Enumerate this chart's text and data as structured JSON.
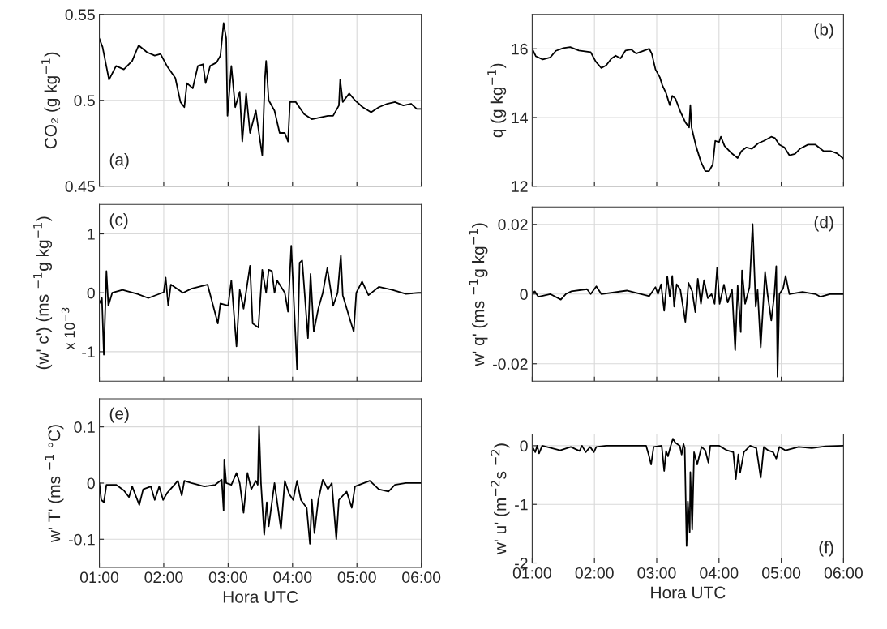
{
  "chart_data": [
    {
      "type": "line",
      "ylabel": "CO₂ (g kg$^{−1}$)",
      "annotations": [
        "(a)"
      ],
      "grid": true,
      "tick_labels": "y",
      "xlim": [
        1,
        6
      ],
      "xticks": [
        {
          "value": 1,
          "label": null
        },
        {
          "value": 2,
          "label": null
        },
        {
          "value": 3,
          "label": null
        },
        {
          "value": 4,
          "label": null
        },
        {
          "value": 5,
          "label": null
        },
        {
          "value": 6,
          "label": null
        }
      ],
      "ylim": [
        0.45,
        0.55
      ],
      "yticks": [
        0.45,
        0.5,
        0.55
      ],
      "series": [
        {
          "color": "#000000",
          "x": [
            1.0,
            1.05,
            1.15,
            1.26,
            1.38,
            1.51,
            1.61,
            1.74,
            1.86,
            1.95,
            2.05,
            2.18,
            2.26,
            2.32,
            2.36,
            2.45,
            2.53,
            2.61,
            2.65,
            2.72,
            2.82,
            2.88,
            2.93,
            2.97,
            2.99,
            3.05,
            3.11,
            3.18,
            3.22,
            3.28,
            3.34,
            3.43,
            3.49,
            3.53,
            3.57,
            3.59,
            3.63,
            3.72,
            3.8,
            3.88,
            3.93,
            3.96,
            4.05,
            4.18,
            4.3,
            4.43,
            4.55,
            4.63,
            4.72,
            4.74,
            4.78,
            4.88,
            4.97,
            5.09,
            5.22,
            5.34,
            5.47,
            5.59,
            5.72,
            5.84,
            5.93,
            6.0
          ],
          "values": [
            0.536,
            0.531,
            0.512,
            0.52,
            0.518,
            0.523,
            0.532,
            0.528,
            0.526,
            0.527,
            0.52,
            0.513,
            0.499,
            0.496,
            0.51,
            0.507,
            0.52,
            0.521,
            0.51,
            0.52,
            0.522,
            0.526,
            0.545,
            0.536,
            0.491,
            0.52,
            0.496,
            0.505,
            0.476,
            0.504,
            0.481,
            0.494,
            0.478,
            0.468,
            0.512,
            0.523,
            0.5,
            0.494,
            0.481,
            0.481,
            0.476,
            0.499,
            0.499,
            0.492,
            0.489,
            0.49,
            0.491,
            0.491,
            0.497,
            0.512,
            0.499,
            0.504,
            0.5,
            0.496,
            0.493,
            0.496,
            0.498,
            0.499,
            0.497,
            0.498,
            0.495,
            0.495
          ]
        }
      ]
    },
    {
      "type": "line",
      "ylabel": "q (g kg$^{−1}$)",
      "annotations": [
        "(b)"
      ],
      "grid": true,
      "tick_labels": "y",
      "xlim": [
        1,
        6
      ],
      "xticks": [
        {
          "value": 1,
          "label": null
        },
        {
          "value": 2,
          "label": null
        },
        {
          "value": 3,
          "label": null
        },
        {
          "value": 4,
          "label": null
        },
        {
          "value": 5,
          "label": null
        },
        {
          "value": 6,
          "label": null
        }
      ],
      "ylim": [
        12,
        17
      ],
      "yticks": [
        12,
        14,
        16
      ],
      "series": [
        {
          "color": "#000000",
          "x": [
            1.0,
            1.06,
            1.17,
            1.29,
            1.38,
            1.5,
            1.61,
            1.75,
            1.94,
            2.02,
            2.11,
            2.19,
            2.27,
            2.34,
            2.42,
            2.5,
            2.59,
            2.67,
            2.8,
            2.88,
            2.92,
            2.98,
            3.05,
            3.09,
            3.15,
            3.21,
            3.25,
            3.3,
            3.38,
            3.46,
            3.52,
            3.54,
            3.56,
            3.63,
            3.71,
            3.78,
            3.84,
            3.9,
            3.94,
            4.0,
            4.03,
            4.09,
            4.19,
            4.3,
            4.36,
            4.44,
            4.53,
            4.63,
            4.72,
            4.84,
            4.9,
            4.97,
            5.05,
            5.13,
            5.22,
            5.3,
            5.43,
            5.55,
            5.68,
            5.8,
            5.9,
            6.0
          ],
          "values": [
            16.0,
            15.78,
            15.69,
            15.75,
            15.94,
            16.02,
            16.05,
            15.95,
            15.9,
            15.63,
            15.44,
            15.52,
            15.71,
            15.8,
            15.72,
            15.95,
            15.98,
            15.86,
            15.95,
            16.0,
            15.86,
            15.4,
            15.17,
            14.94,
            14.71,
            14.36,
            14.63,
            14.55,
            14.17,
            13.86,
            13.71,
            14.36,
            13.71,
            13.17,
            12.71,
            12.44,
            12.44,
            12.63,
            13.32,
            13.28,
            13.44,
            13.17,
            12.98,
            12.82,
            13.02,
            13.13,
            13.09,
            13.25,
            13.32,
            13.44,
            13.4,
            13.21,
            13.13,
            12.9,
            12.94,
            13.09,
            13.21,
            13.21,
            13.02,
            13.02,
            12.95,
            12.8
          ]
        }
      ]
    },
    {
      "type": "line",
      "ylabel": "(w' c') (ms $^{−1}$g kg$^{−1}$)",
      "annotations": [
        "(c)",
        "x 10$^{−3}$"
      ],
      "grid": true,
      "tick_labels": "y",
      "xlim": [
        1,
        6
      ],
      "xticks": [
        {
          "value": 1,
          "label": null
        },
        {
          "value": 2,
          "label": null
        },
        {
          "value": 3,
          "label": null
        },
        {
          "value": 4,
          "label": null
        },
        {
          "value": 5,
          "label": null
        },
        {
          "value": 6,
          "label": null
        }
      ],
      "ylim": [
        -1.5,
        1.5
      ],
      "yticks": [
        -1,
        0,
        1
      ],
      "series": [
        {
          "color": "#000000",
          "x": [
            1.0,
            1.04,
            1.07,
            1.11,
            1.14,
            1.2,
            1.36,
            1.59,
            1.76,
            2.0,
            2.03,
            2.07,
            2.11,
            2.3,
            2.43,
            2.68,
            2.84,
            2.88,
            3.0,
            3.05,
            3.13,
            3.18,
            3.24,
            3.34,
            3.38,
            3.47,
            3.53,
            3.59,
            3.63,
            3.68,
            3.72,
            3.76,
            3.88,
            3.93,
            3.98,
            4.03,
            4.07,
            4.11,
            4.15,
            4.24,
            4.28,
            4.33,
            4.4,
            4.47,
            4.54,
            4.63,
            4.7,
            4.75,
            4.78,
            4.88,
            4.95,
            4.99,
            5.08,
            5.18,
            5.34,
            5.55,
            5.76,
            5.95,
            6.0
          ],
          "values": [
            -0.18,
            -0.09,
            -1.05,
            0.37,
            -0.22,
            0,
            0.05,
            -0.02,
            -0.09,
            0.01,
            0.26,
            -0.22,
            0.14,
            0,
            0.07,
            0.14,
            -0.52,
            -0.18,
            -0.22,
            0.21,
            -0.91,
            0.05,
            -0.27,
            0.46,
            -0.52,
            -0.59,
            0.39,
            0,
            0.39,
            0.37,
            0,
            0.21,
            0,
            -0.32,
            0.8,
            -0.36,
            -1.3,
            0.51,
            0.55,
            -0.77,
            0.32,
            -0.66,
            -0.27,
            0,
            0.42,
            -0.22,
            0,
            0.64,
            -0.04,
            -0.41,
            -0.66,
            0,
            0.19,
            -0.04,
            0.1,
            0.05,
            -0.02,
            0,
            0
          ]
        }
      ]
    },
    {
      "type": "line",
      "ylabel": "w' q' (ms $^{−1}$g kg$^{−1}$)",
      "annotations": [
        "(d)"
      ],
      "grid": true,
      "tick_labels": "y",
      "xlim": [
        1,
        6
      ],
      "xticks": [
        {
          "value": 1,
          "label": null
        },
        {
          "value": 2,
          "label": null
        },
        {
          "value": 3,
          "label": null
        },
        {
          "value": 4,
          "label": null
        },
        {
          "value": 5,
          "label": null
        },
        {
          "value": 6,
          "label": null
        }
      ],
      "ylim": [
        -0.025,
        0.025
      ],
      "yticks": [
        -0.02,
        0,
        0.02
      ],
      "series": [
        {
          "color": "#000000",
          "x": [
            1.0,
            1.04,
            1.1,
            1.29,
            1.46,
            1.54,
            1.63,
            1.88,
            1.94,
            2.03,
            2.11,
            2.52,
            2.88,
            2.98,
            3.02,
            3.07,
            3.12,
            3.17,
            3.21,
            3.25,
            3.28,
            3.32,
            3.38,
            3.46,
            3.51,
            3.57,
            3.62,
            3.66,
            3.71,
            3.76,
            3.82,
            3.88,
            3.93,
            3.97,
            4.01,
            4.08,
            4.14,
            4.21,
            4.26,
            4.3,
            4.35,
            4.37,
            4.42,
            4.49,
            4.54,
            4.59,
            4.62,
            4.67,
            4.74,
            4.78,
            4.84,
            4.89,
            4.92,
            4.94,
            4.97,
            5.03,
            5.07,
            5.13,
            5.34,
            5.55,
            5.63,
            5.78,
            6.0
          ],
          "values": [
            0,
            0.0008,
            -0.0008,
            0,
            -0.0016,
            0,
            0.0008,
            0.0014,
            0,
            0.0022,
            0,
            0.001,
            -0.0006,
            0.002,
            0,
            0.0028,
            -0.0048,
            0.0051,
            -0.0008,
            0.0052,
            -0.0036,
            0.0028,
            0.0012,
            -0.008,
            0.0032,
            0.0008,
            -0.0052,
            0.0044,
            -0.0028,
            0.004,
            -0.0012,
            0,
            -0.0028,
            0.0076,
            -0.0028,
            0.0027,
            -0.0024,
            0.0012,
            -0.0161,
            0.0024,
            -0.0109,
            0.0068,
            -0.0028,
            0.002,
            0.0201,
            -0.0036,
            0.0012,
            -0.0153,
            0.0064,
            0,
            -0.0076,
            0,
            0.008,
            -0.0237,
            0,
            0.0016,
            0.0052,
            0,
            0.0006,
            0,
            -0.0008,
            0,
            0
          ]
        }
      ]
    },
    {
      "type": "line",
      "ylabel": "w' T' (ms $^{−1}$ °C)",
      "xlabel": "Hora UTC",
      "annotations": [
        "(e)"
      ],
      "grid": true,
      "xlim": [
        1,
        6
      ],
      "xticks": [
        {
          "value": 1,
          "label": "01:00"
        },
        {
          "value": 2,
          "label": "02:00"
        },
        {
          "value": 3,
          "label": "03:00"
        },
        {
          "value": 4,
          "label": "04:00"
        },
        {
          "value": 5,
          "label": "05:00"
        },
        {
          "value": 6,
          "label": "06:00"
        }
      ],
      "ylim": [
        -0.15,
        0.15
      ],
      "yticks": [
        -0.1,
        0,
        0.1
      ],
      "series": [
        {
          "color": "#000000",
          "x": [
            1.0,
            1.03,
            1.07,
            1.11,
            1.26,
            1.38,
            1.46,
            1.51,
            1.62,
            1.68,
            1.8,
            1.86,
            1.93,
            1.99,
            2.05,
            2.22,
            2.28,
            2.32,
            2.43,
            2.63,
            2.8,
            2.9,
            2.93,
            2.94,
            2.97,
            3.05,
            3.13,
            3.18,
            3.24,
            3.3,
            3.36,
            3.43,
            3.46,
            3.48,
            3.51,
            3.56,
            3.6,
            3.63,
            3.72,
            3.82,
            3.88,
            3.95,
            4.01,
            4.07,
            4.13,
            4.22,
            4.27,
            4.3,
            4.34,
            4.4,
            4.47,
            4.55,
            4.61,
            4.68,
            4.72,
            4.84,
            4.92,
            4.97,
            5.2,
            5.34,
            5.49,
            5.59,
            5.76,
            5.95,
            6.0
          ],
          "values": [
            0,
            -0.03,
            -0.034,
            -0.003,
            -0.003,
            -0.013,
            -0.025,
            -0.006,
            -0.039,
            -0.011,
            -0.006,
            -0.03,
            -0.006,
            -0.03,
            -0.018,
            0.004,
            -0.022,
            0.004,
            0,
            -0.006,
            -0.003,
            0.006,
            -0.049,
            0.042,
            0,
            -0.003,
            0.018,
            0,
            -0.053,
            0.018,
            -0.011,
            0.004,
            -0.003,
            0.102,
            0,
            -0.092,
            -0.034,
            -0.077,
            0,
            -0.082,
            0.004,
            -0.02,
            -0.03,
            0.004,
            -0.03,
            -0.044,
            -0.108,
            -0.03,
            -0.089,
            -0.03,
            0.006,
            -0.011,
            0,
            -0.1,
            -0.03,
            -0.015,
            -0.044,
            -0.006,
            0.004,
            -0.011,
            -0.015,
            -0.003,
            0,
            0,
            0
          ]
        }
      ]
    },
    {
      "type": "line",
      "ylabel": "w' u' (m$^{−2}$s $^{−2}$)",
      "xlabel": "Hora UTC",
      "annotations": [
        "(f)"
      ],
      "grid": true,
      "xlim": [
        1,
        6
      ],
      "xticks": [
        {
          "value": 1,
          "label": "01:00"
        },
        {
          "value": 2,
          "label": "02:00"
        },
        {
          "value": 3,
          "label": "03:00"
        },
        {
          "value": 4,
          "label": "04:00"
        },
        {
          "value": 5,
          "label": "05:00"
        },
        {
          "value": 6,
          "label": "06:00"
        }
      ],
      "ylim": [
        -2,
        0.2
      ],
      "yticks": [
        -2,
        -1,
        0
      ],
      "series": [
        {
          "color": "#000000",
          "x": [
            1.0,
            1.05,
            1.08,
            1.11,
            1.16,
            1.45,
            1.62,
            1.76,
            1.8,
            1.86,
            1.93,
            1.99,
            2.03,
            2.19,
            2.6,
            2.83,
            2.87,
            2.91,
            2.95,
            3.08,
            3.12,
            3.15,
            3.18,
            3.22,
            3.26,
            3.3,
            3.37,
            3.4,
            3.43,
            3.45,
            3.48,
            3.5,
            3.53,
            3.54,
            3.57,
            3.6,
            3.65,
            3.72,
            3.78,
            3.83,
            3.86,
            4.0,
            4.13,
            4.23,
            4.27,
            4.31,
            4.34,
            4.4,
            4.5,
            4.6,
            4.67,
            4.72,
            4.79,
            4.87,
            4.92,
            4.97,
            5.07,
            5.28,
            5.49,
            5.71,
            6.0
          ],
          "values": [
            -0.01,
            -0.11,
            0,
            -0.13,
            0,
            -0.08,
            -0.02,
            -0.09,
            0,
            -0.11,
            -0.02,
            -0.11,
            -0.02,
            0,
            0,
            0,
            -0.15,
            -0.32,
            -0.02,
            0,
            -0.43,
            -0.09,
            -0.18,
            -0.02,
            0.12,
            0.05,
            0,
            -0.15,
            0.03,
            -0.04,
            -1.71,
            -0.95,
            -1.48,
            -0.45,
            -1.43,
            -0.11,
            -0.32,
            -0.02,
            -0.08,
            -0.29,
            0,
            0,
            -0.08,
            -0.11,
            -0.57,
            -0.15,
            -0.46,
            -0.11,
            0,
            -0.04,
            -0.55,
            -0.02,
            -0.08,
            -0.11,
            -0.22,
            -0.02,
            -0.08,
            -0.02,
            -0.04,
            -0.01,
            0
          ]
        }
      ]
    }
  ]
}
